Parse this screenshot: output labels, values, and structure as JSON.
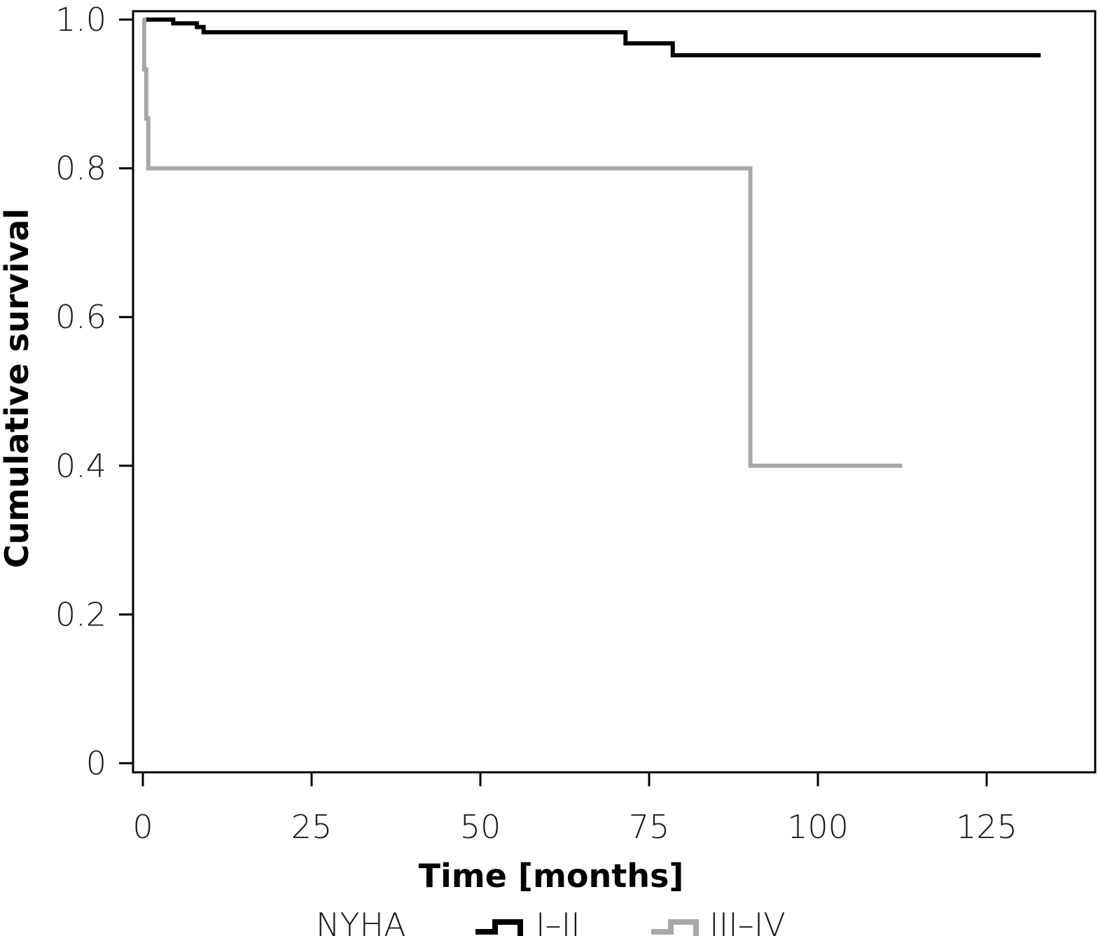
{
  "chart_data": {
    "type": "line",
    "subtype": "kaplan-meier step",
    "xlabel": "Time [months]",
    "ylabel": "Cumulative survival",
    "xlim": [
      -1,
      141
    ],
    "ylim": [
      0,
      1.0
    ],
    "xticks": [
      0,
      25,
      50,
      75,
      100,
      125
    ],
    "xtick_labels": [
      "0",
      "25",
      "50",
      "75",
      "100",
      "125"
    ],
    "yticks": [
      0,
      0.2,
      0.4,
      0.6,
      0.8,
      1.0
    ],
    "ytick_labels": [
      "0",
      "0.2",
      "0.4",
      "0.6",
      "0.8",
      "1.0"
    ],
    "grid": false,
    "legend": {
      "title": "NYHA",
      "placement": "bottom"
    },
    "series": [
      {
        "name": "I–II",
        "color": "#000000",
        "steps": [
          [
            0,
            1.0
          ],
          [
            4.5,
            0.995
          ],
          [
            8,
            0.99
          ],
          [
            9,
            0.983
          ],
          [
            71.5,
            0.968
          ],
          [
            78.5,
            0.952
          ],
          [
            133,
            0.952
          ]
        ]
      },
      {
        "name": "III–IV",
        "color": "#a8a8a8",
        "steps": [
          [
            0,
            1.0
          ],
          [
            0.2,
            0.933
          ],
          [
            0.5,
            0.867
          ],
          [
            0.8,
            0.8
          ],
          [
            90,
            0.4
          ],
          [
            112.5,
            0.4
          ]
        ]
      }
    ]
  }
}
